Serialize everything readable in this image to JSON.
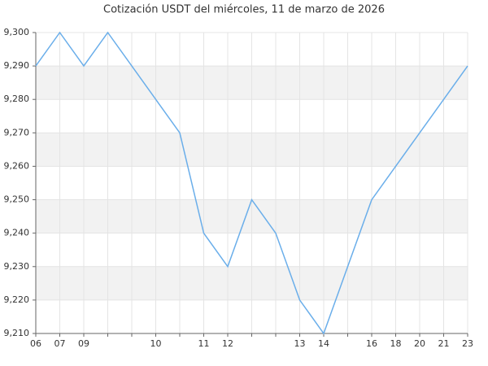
{
  "chart_data": {
    "type": "line",
    "title": "Cotización USDT del miércoles, 11 de marzo de 2026",
    "categories": [
      "06",
      "07",
      "09",
      null,
      null,
      "10",
      null,
      "11",
      "12",
      null,
      null,
      "13",
      "14",
      null,
      "16",
      "18",
      "20",
      "21",
      "23"
    ],
    "series": [
      {
        "name": "USDT",
        "color": "#6aaeea",
        "values": [
          9290,
          9300,
          9290,
          9300,
          9290,
          9280,
          9270,
          9240,
          9230,
          9250,
          9240,
          9220,
          9210,
          9230,
          9250,
          9260,
          9270,
          9280,
          9290
        ]
      }
    ],
    "ylim": [
      9210,
      9300
    ],
    "yticks": [
      {
        "value": 9210,
        "label": "9,210"
      },
      {
        "value": 9220,
        "label": "9,220"
      },
      {
        "value": 9230,
        "label": "9,230"
      },
      {
        "value": 9240,
        "label": "9,240"
      },
      {
        "value": 9250,
        "label": "9,250"
      },
      {
        "value": 9260,
        "label": "9,260"
      },
      {
        "value": 9270,
        "label": "9,270"
      },
      {
        "value": 9280,
        "label": "9,280"
      },
      {
        "value": 9290,
        "label": "9,290"
      },
      {
        "value": 9300,
        "label": "9,300"
      }
    ],
    "grid": true
  }
}
